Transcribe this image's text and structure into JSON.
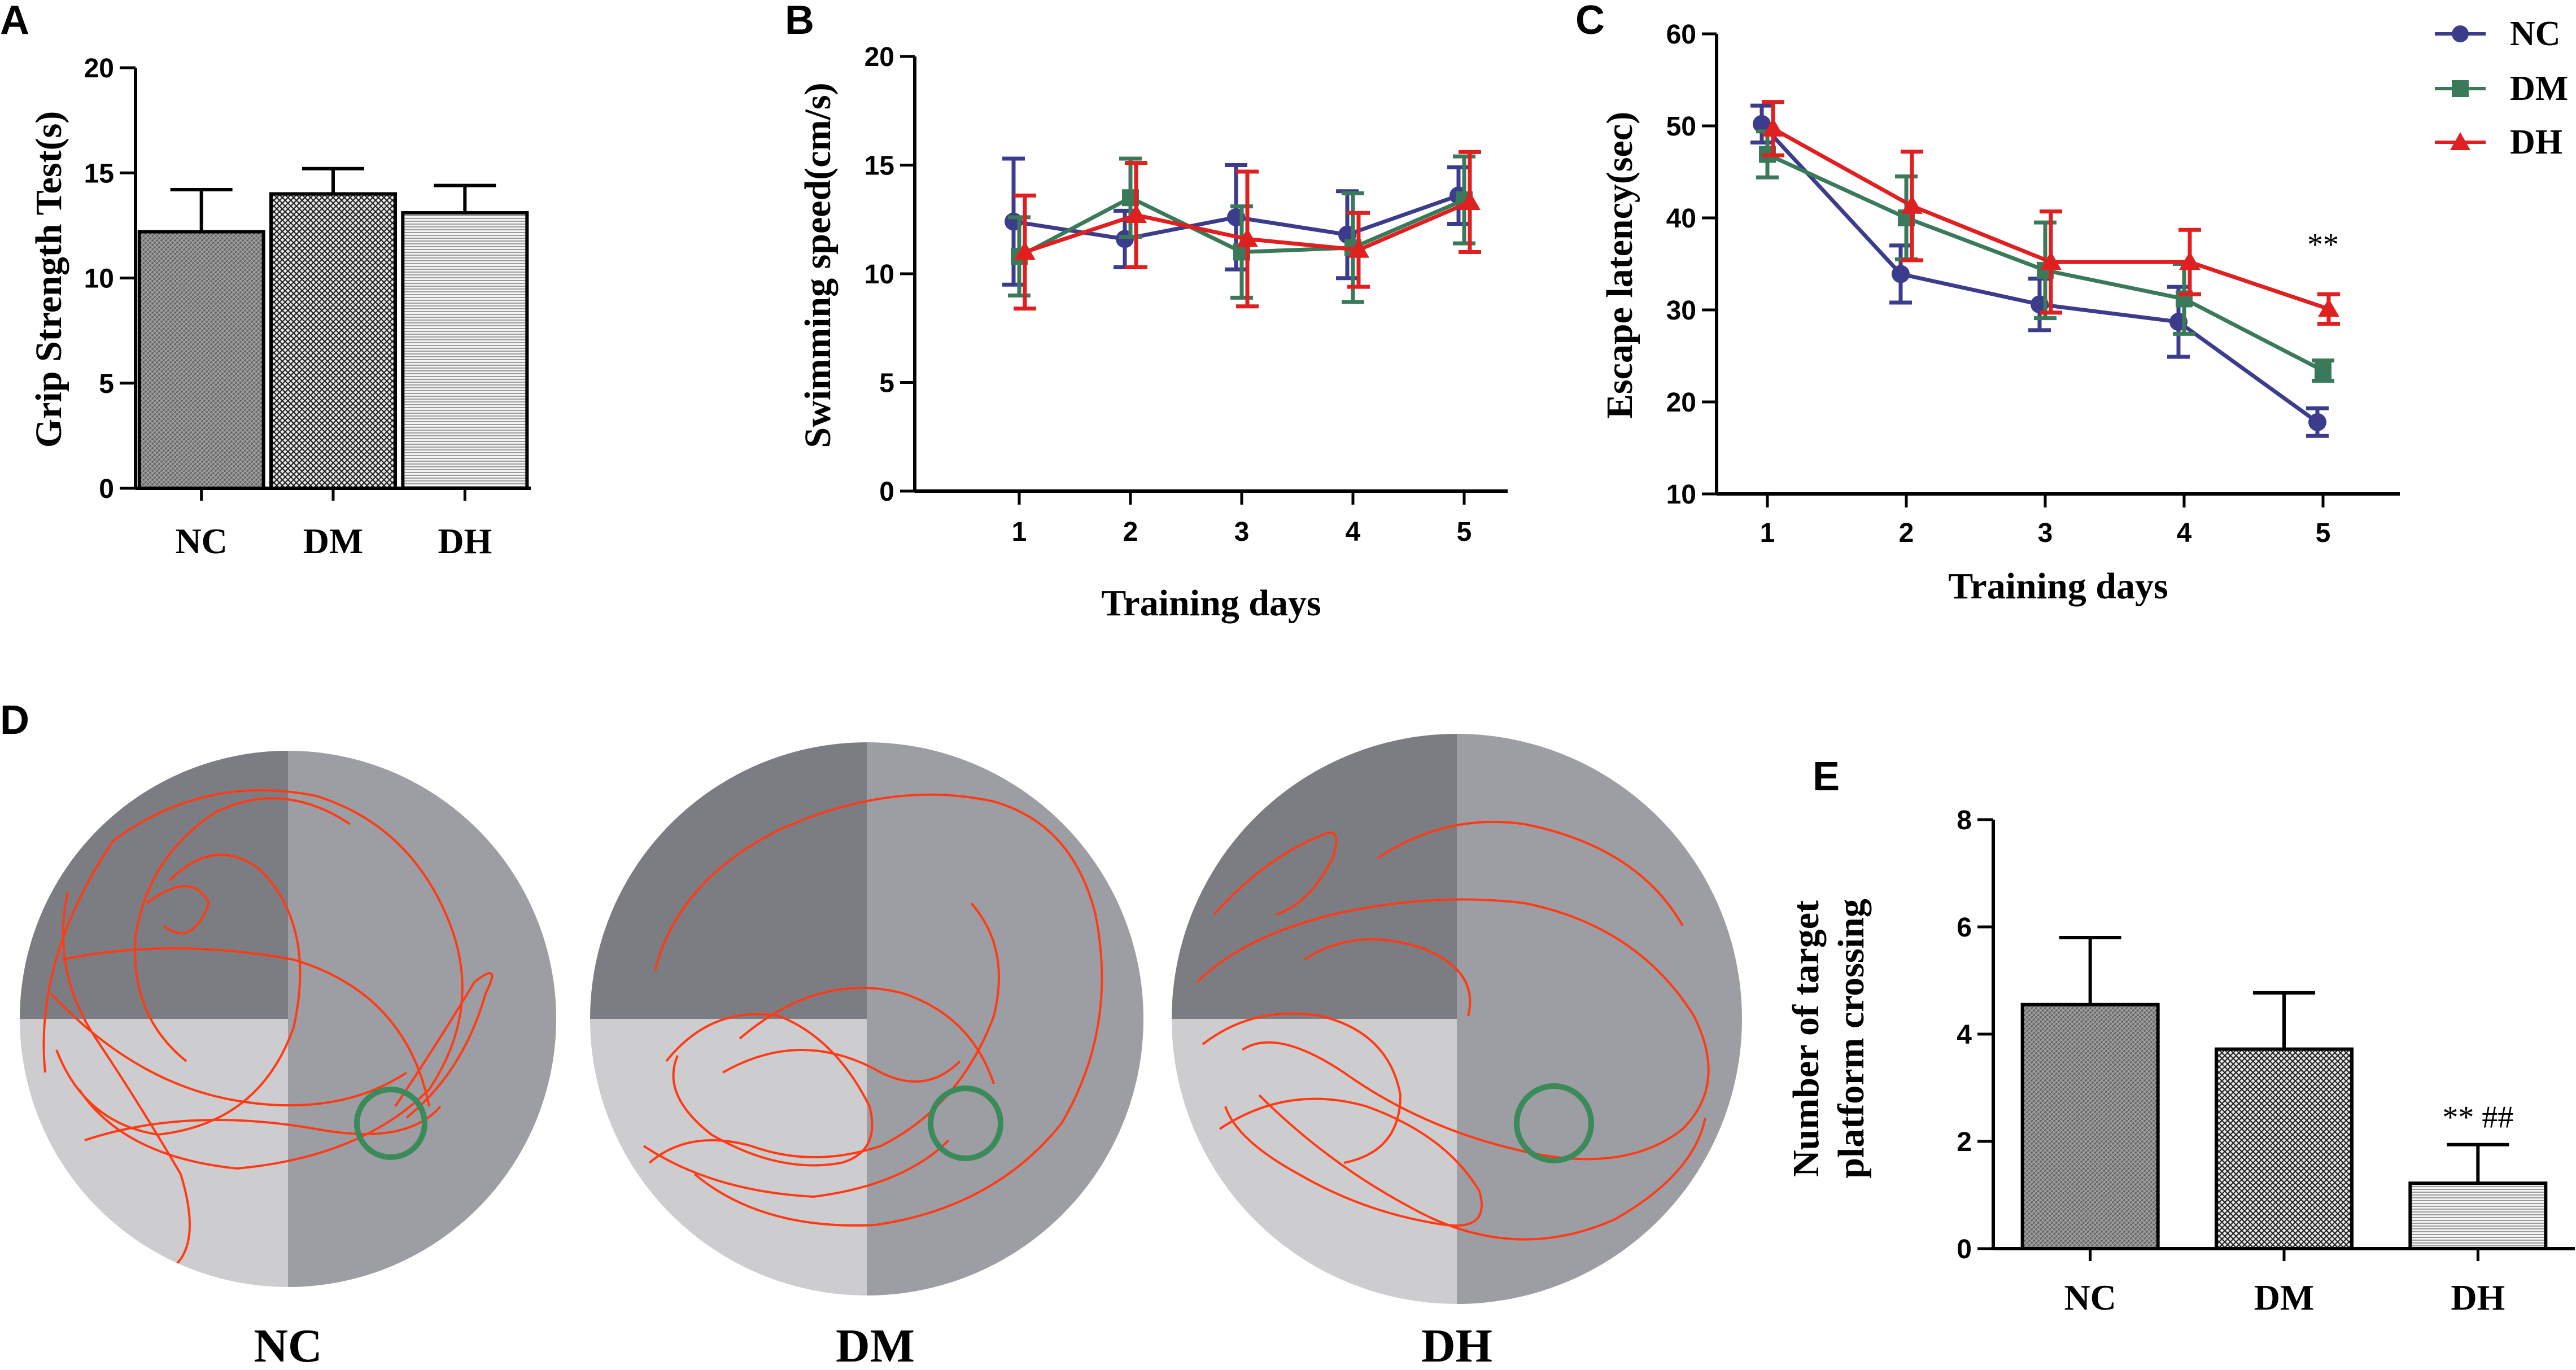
{
  "colors": {
    "nc": "#3c3c8c",
    "dm": "#3a7a5a",
    "dh": "#e02020",
    "path": "#ff3a14",
    "platform": "#3a8a5a",
    "quad_dark": "#7c7d82",
    "quad_mid": "#9d9ea3",
    "quad_light": "#cdcdd0",
    "bar_nc": "#8f8f8f",
    "bar_dm": "#bdbdbd",
    "bar_dh": "#d9d9d9"
  },
  "chart_data": [
    {
      "id": "A",
      "panel_letter": "A",
      "type": "bar",
      "categories": [
        "NC",
        "DM",
        "DH"
      ],
      "values": [
        12.2,
        14.0,
        13.1
      ],
      "errors": [
        2.0,
        1.2,
        1.3
      ],
      "ylabel": "Grip Strength Test(s)",
      "xlabel": "",
      "ylim": [
        0,
        20
      ],
      "yticks": [
        "0",
        "5",
        "10",
        "15",
        "20"
      ],
      "annotations": []
    },
    {
      "id": "B",
      "panel_letter": "B",
      "type": "line",
      "x": [
        1,
        2,
        3,
        4,
        5
      ],
      "xticks": [
        "1",
        "2",
        "3",
        "4",
        "5"
      ],
      "xlabel": "Training days",
      "ylabel": "Swimming speed(cm/s)",
      "ylim": [
        0,
        20
      ],
      "yticks": [
        "0",
        "5",
        "10",
        "15",
        "20"
      ],
      "series": [
        {
          "name": "NC",
          "values": [
            12.4,
            11.6,
            12.6,
            11.8,
            13.6
          ],
          "errors": [
            2.9,
            1.3,
            2.4,
            2.0,
            1.3
          ]
        },
        {
          "name": "DM",
          "values": [
            10.8,
            13.5,
            11.0,
            11.2,
            13.4
          ],
          "errors": [
            1.8,
            1.8,
            2.1,
            2.5,
            2.0
          ]
        },
        {
          "name": "DH",
          "values": [
            11.0,
            12.7,
            11.6,
            11.1,
            13.3
          ],
          "errors": [
            2.6,
            2.4,
            3.1,
            1.7,
            2.3
          ]
        }
      ]
    },
    {
      "id": "C",
      "panel_letter": "C",
      "type": "line",
      "x": [
        1,
        2,
        3,
        4,
        5
      ],
      "xticks": [
        "1",
        "2",
        "3",
        "4",
        "5"
      ],
      "xlabel": "Training days",
      "ylabel": "Escape latency(sec)",
      "ylim": [
        10,
        60
      ],
      "yticks": [
        "10",
        "20",
        "30",
        "40",
        "50",
        "60"
      ],
      "series": [
        {
          "name": "NC",
          "values": [
            50.2,
            33.9,
            30.6,
            28.7,
            17.8
          ],
          "errors": [
            2.0,
            3.1,
            2.8,
            3.8,
            1.5
          ]
        },
        {
          "name": "DM",
          "values": [
            46.9,
            40.0,
            34.3,
            31.2,
            23.4
          ],
          "errors": [
            2.5,
            4.5,
            5.2,
            3.8,
            1.1
          ]
        },
        {
          "name": "DH",
          "values": [
            49.7,
            41.3,
            35.2,
            35.2,
            30.1
          ],
          "errors": [
            2.9,
            5.9,
            5.5,
            3.5,
            1.6
          ]
        }
      ],
      "legend_position": "top-right",
      "annotations": [
        {
          "x": 5,
          "text": "**"
        }
      ]
    },
    {
      "id": "E",
      "panel_letter": "E",
      "type": "bar",
      "categories": [
        "NC",
        "DM",
        "DH"
      ],
      "values": [
        4.55,
        3.72,
        1.22
      ],
      "errors": [
        1.25,
        1.05,
        0.72
      ],
      "ylabel": "Number of target platform crossing",
      "ylabel_lines": [
        "Number of target",
        "platform crossing"
      ],
      "xlabel": "",
      "ylim": [
        0,
        8
      ],
      "yticks": [
        "0",
        "2",
        "4",
        "6",
        "8"
      ],
      "annotations": [
        {
          "category": "DH",
          "text": "** ##"
        }
      ]
    }
  ],
  "panel_d": {
    "panel_letter": "D",
    "mazes": [
      {
        "label": "NC"
      },
      {
        "label": "DM"
      },
      {
        "label": "DH"
      }
    ]
  }
}
